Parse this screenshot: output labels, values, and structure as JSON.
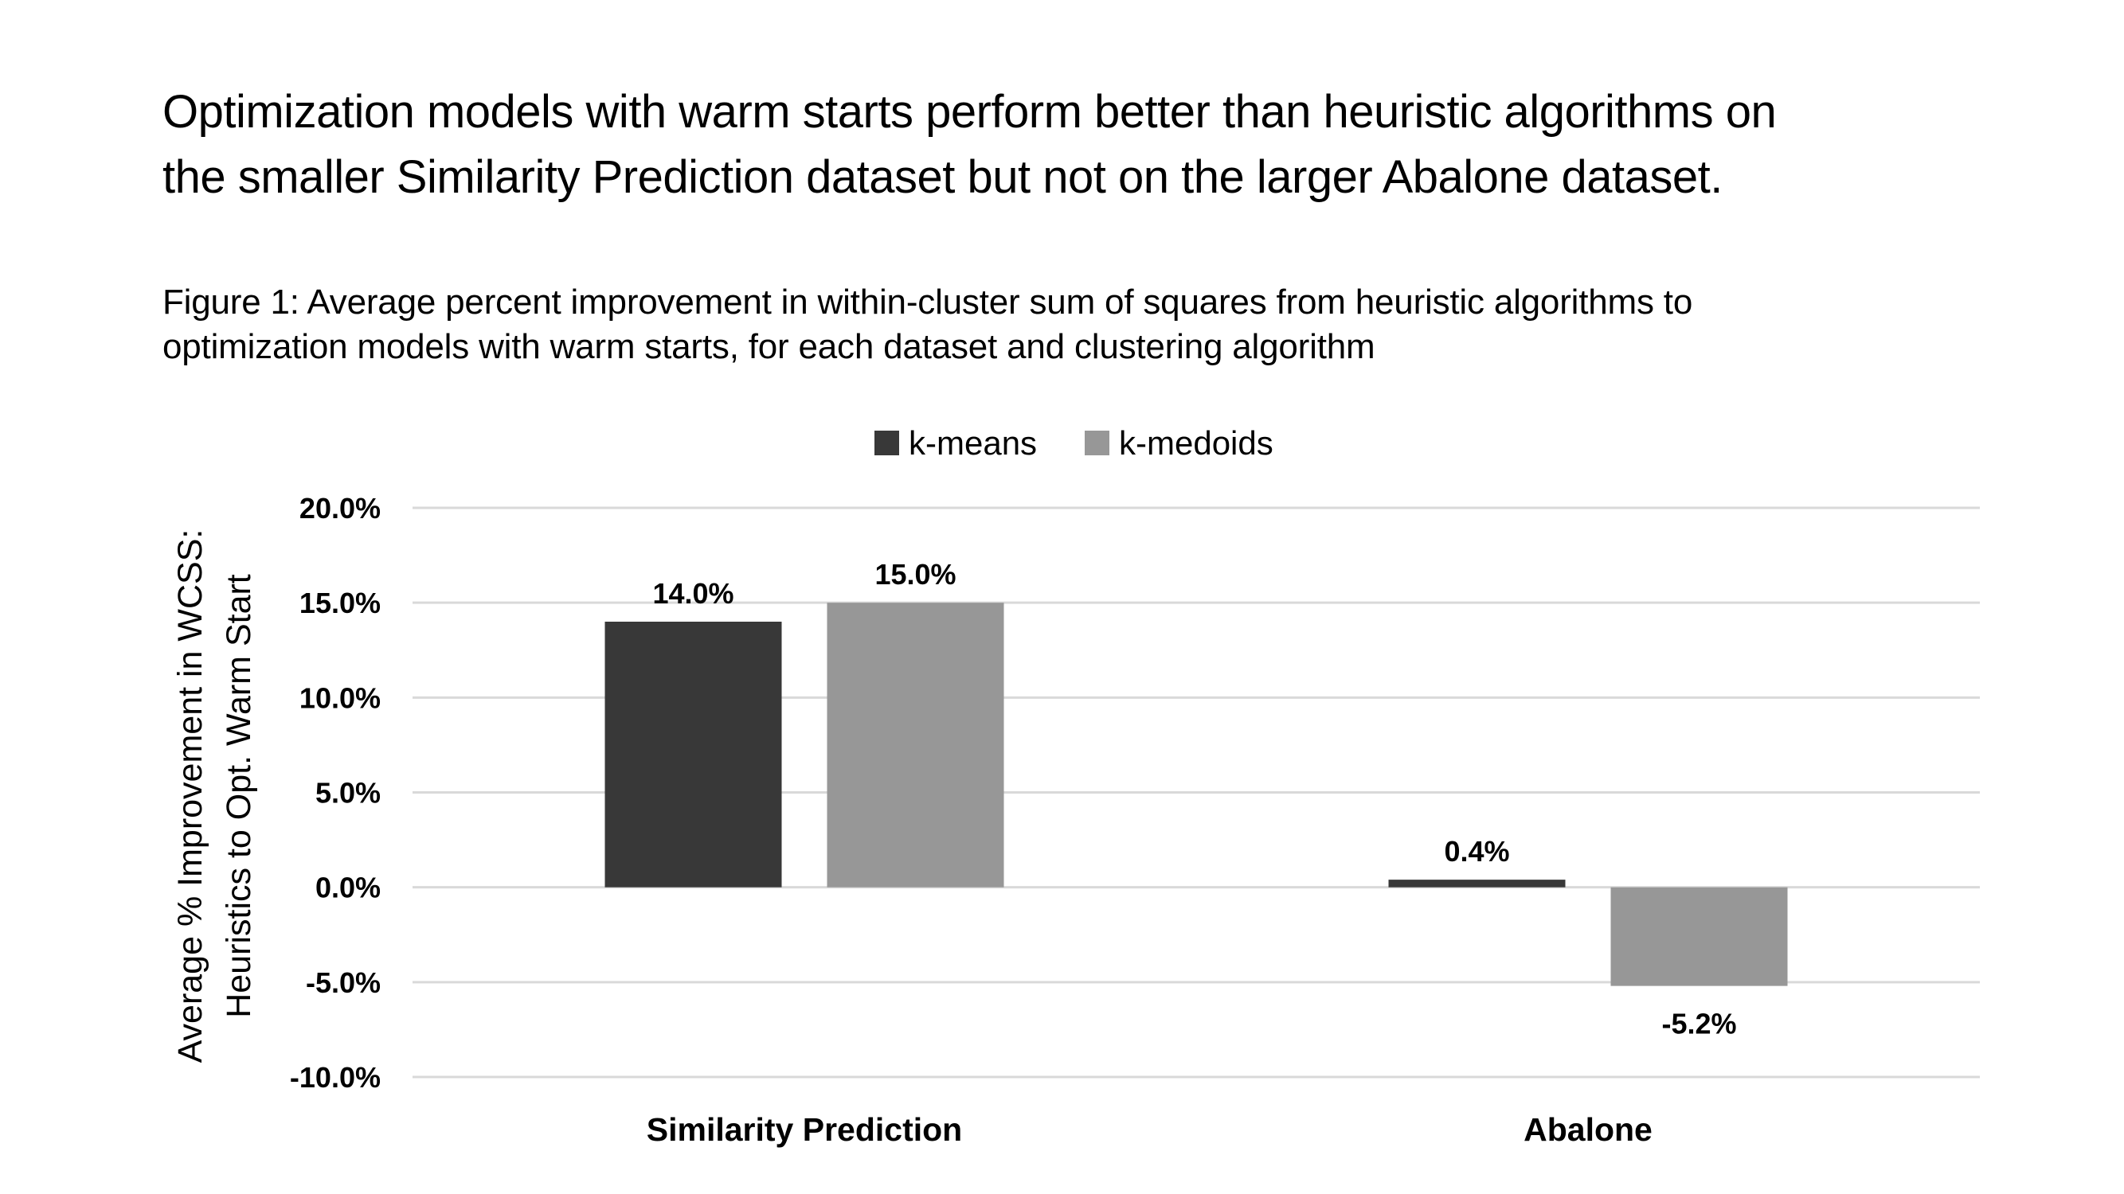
{
  "slide": {
    "title_line1": "Optimization models with warm starts perform better than heuristic algorithms on",
    "title_line2": "the smaller Similarity Prediction dataset but not on the larger Abalone dataset.",
    "caption_line1": "Figure 1: Average percent improvement in within-cluster sum of squares from heuristic algorithms to",
    "caption_line2": "optimization models with warm starts, for each dataset and clustering algorithm"
  },
  "chart_data": {
    "type": "bar",
    "title": "",
    "xlabel": "",
    "ylabel_line1": "Average % Improvement in WCSS:",
    "ylabel_line2": "Heuristics to Opt. Warm Start",
    "categories": [
      "Similarity Prediction",
      "Abalone"
    ],
    "series": [
      {
        "name": "k-means",
        "values": [
          14.0,
          0.4
        ],
        "labels": [
          "14.0%",
          "0.4%"
        ],
        "color": "#383838"
      },
      {
        "name": "k-medoids",
        "values": [
          15.0,
          -5.2
        ],
        "labels": [
          "15.0%",
          "-5.2%"
        ],
        "color": "#979797"
      }
    ],
    "ylim": [
      -10,
      20
    ],
    "yticks": [
      20,
      15,
      10,
      5,
      0,
      -5,
      -10
    ],
    "ytick_labels": [
      "20.0%",
      "15.0%",
      "10.0%",
      "5.0%",
      "0.0%",
      "-5.0%",
      "-10.0%"
    ],
    "grid": true,
    "gridline_color": "#d9d9d9",
    "legend_position": "top-center"
  }
}
